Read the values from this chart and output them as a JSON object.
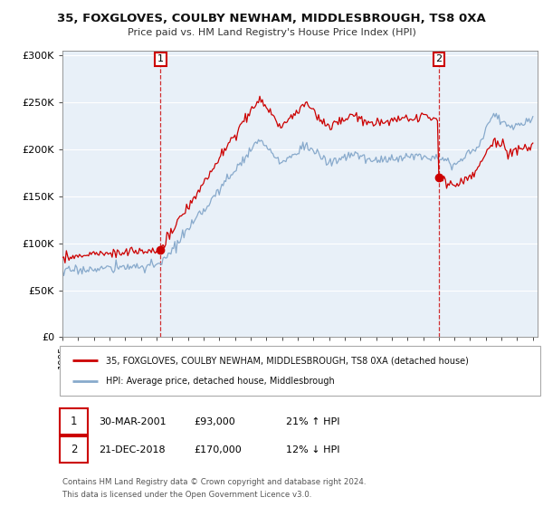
{
  "title": "35, FOXGLOVES, COULBY NEWHAM, MIDDLESBROUGH, TS8 0XA",
  "subtitle": "Price paid vs. HM Land Registry's House Price Index (HPI)",
  "ylabel_ticks": [
    "£0",
    "£50K",
    "£100K",
    "£150K",
    "£200K",
    "£250K",
    "£300K"
  ],
  "ytick_vals": [
    0,
    50000,
    100000,
    150000,
    200000,
    250000,
    300000
  ],
  "ylim": [
    0,
    305000
  ],
  "sale1_year": 2001.25,
  "sale1_price": 93000,
  "sale1_date": "30-MAR-2001",
  "sale1_hpi_pct": "21% ↑ HPI",
  "sale2_year": 2019.0,
  "sale2_price": 170000,
  "sale2_date": "21-DEC-2018",
  "sale2_hpi_pct": "12% ↓ HPI",
  "legend_line1": "35, FOXGLOVES, COULBY NEWHAM, MIDDLESBROUGH, TS8 0XA (detached house)",
  "legend_line2": "HPI: Average price, detached house, Middlesbrough",
  "footer1": "Contains HM Land Registry data © Crown copyright and database right 2024.",
  "footer2": "This data is licensed under the Open Government Licence v3.0.",
  "red_color": "#cc0000",
  "blue_color": "#88aacc",
  "chart_bg": "#e8f0f8",
  "background": "#ffffff"
}
